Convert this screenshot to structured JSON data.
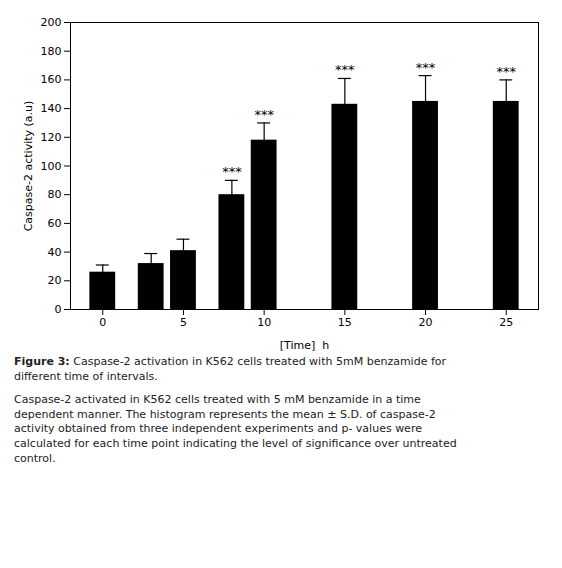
{
  "chart_data": {
    "type": "bar",
    "x": [
      0,
      3,
      5,
      8,
      10,
      15,
      20,
      25
    ],
    "values": [
      26,
      32,
      41,
      80,
      118,
      143,
      145,
      145
    ],
    "errors": [
      5,
      7,
      8,
      10,
      12,
      18,
      18,
      15
    ],
    "annotations": [
      null,
      null,
      null,
      "***",
      "***",
      "***",
      "***",
      "***"
    ],
    "xlabel": "[Time]  h",
    "ylabel": "Caspase-2 activity (a.u)",
    "xlim": [
      -2,
      27
    ],
    "xticks": [
      0,
      5,
      10,
      15,
      20,
      25
    ],
    "ylim": [
      0,
      200
    ],
    "yticks": [
      0,
      20,
      40,
      60,
      80,
      100,
      120,
      140,
      160,
      180,
      200
    ],
    "grid": false,
    "title_label": "Figure 3:",
    "title": "Caspase-2 activation in K562 cells treated with 5mM benzamide for\ndifferent time of intervals.",
    "caption": "Caspase-2 activated in K562 cells treated with 5 mM benzamide in a time\ndependent manner. The histogram represents the mean ± S.D. of caspase-2\nactivity obtained from three independent experiments and p- values were\ncalculated for each time point indicating the level of significance over untreated\ncontrol."
  }
}
